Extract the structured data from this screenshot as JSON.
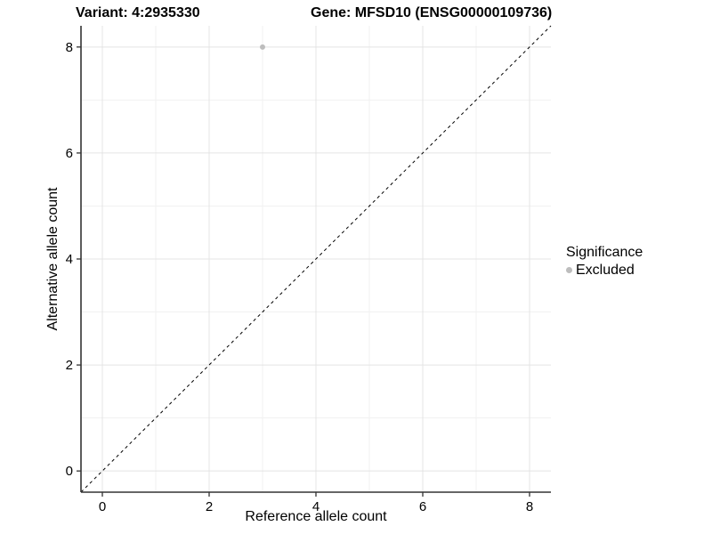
{
  "header": {
    "variant_title": "Variant: 4:2935330",
    "gene_title": "Gene: MFSD10 (ENSG00000109736)"
  },
  "legend": {
    "title": "Significance",
    "items": [
      {
        "label": "Excluded",
        "color": "#bdbdbd"
      }
    ]
  },
  "chart_data": {
    "type": "scatter",
    "title": "Variant: 4:2935330   Gene: MFSD10 (ENSG00000109736)",
    "xlabel": "Reference allele count",
    "ylabel": "Alternative allele count",
    "xlim": [
      -0.4,
      8.4
    ],
    "ylim": [
      -0.4,
      8.4
    ],
    "x_major_ticks": [
      0,
      2,
      4,
      6,
      8
    ],
    "y_major_ticks": [
      0,
      2,
      4,
      6,
      8
    ],
    "x_minor_gridlines": [
      1,
      3,
      5,
      7
    ],
    "y_minor_gridlines": [
      1,
      3,
      5,
      7
    ],
    "grid": true,
    "legend_position": "right",
    "series": [
      {
        "name": "Excluded",
        "color": "#bdbdbd",
        "points": [
          {
            "x": 3,
            "y": 8
          }
        ]
      }
    ],
    "reference_line": {
      "type": "identity",
      "style": "dashed",
      "color": "#000000"
    }
  },
  "colors": {
    "background": "#ffffff",
    "axis_line": "#333333",
    "tick": "#333333",
    "grid_major": "#e4e4e4",
    "grid_minor": "#f1f1f1",
    "text": "#000000"
  }
}
